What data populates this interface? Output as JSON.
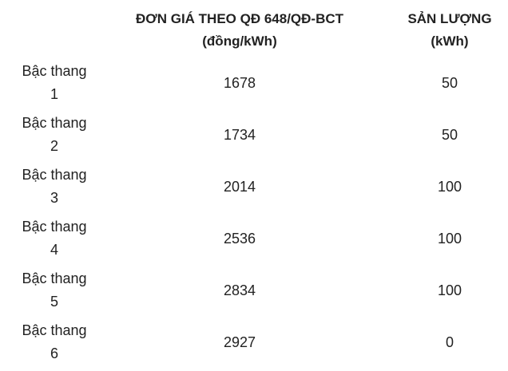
{
  "header": {
    "price_line1": "ĐƠN GIÁ THEO QĐ 648/QĐ-BCT",
    "price_line2": "(đồng/kWh)",
    "qty_line1": "SẢN LƯỢNG",
    "qty_line2": "(kWh)"
  },
  "rows": [
    {
      "label_line1": "Bậc thang",
      "label_line2": "1",
      "price": "1678",
      "qty": "50"
    },
    {
      "label_line1": "Bậc thang",
      "label_line2": "2",
      "price": "1734",
      "qty": "50"
    },
    {
      "label_line1": "Bậc thang",
      "label_line2": "3",
      "price": "2014",
      "qty": "100"
    },
    {
      "label_line1": "Bậc thang",
      "label_line2": "4",
      "price": "2536",
      "qty": "100"
    },
    {
      "label_line1": "Bậc thang",
      "label_line2": "5",
      "price": "2834",
      "qty": "100"
    },
    {
      "label_line1": "Bậc thang",
      "label_line2": "6",
      "price": "2927",
      "qty": "0"
    }
  ]
}
